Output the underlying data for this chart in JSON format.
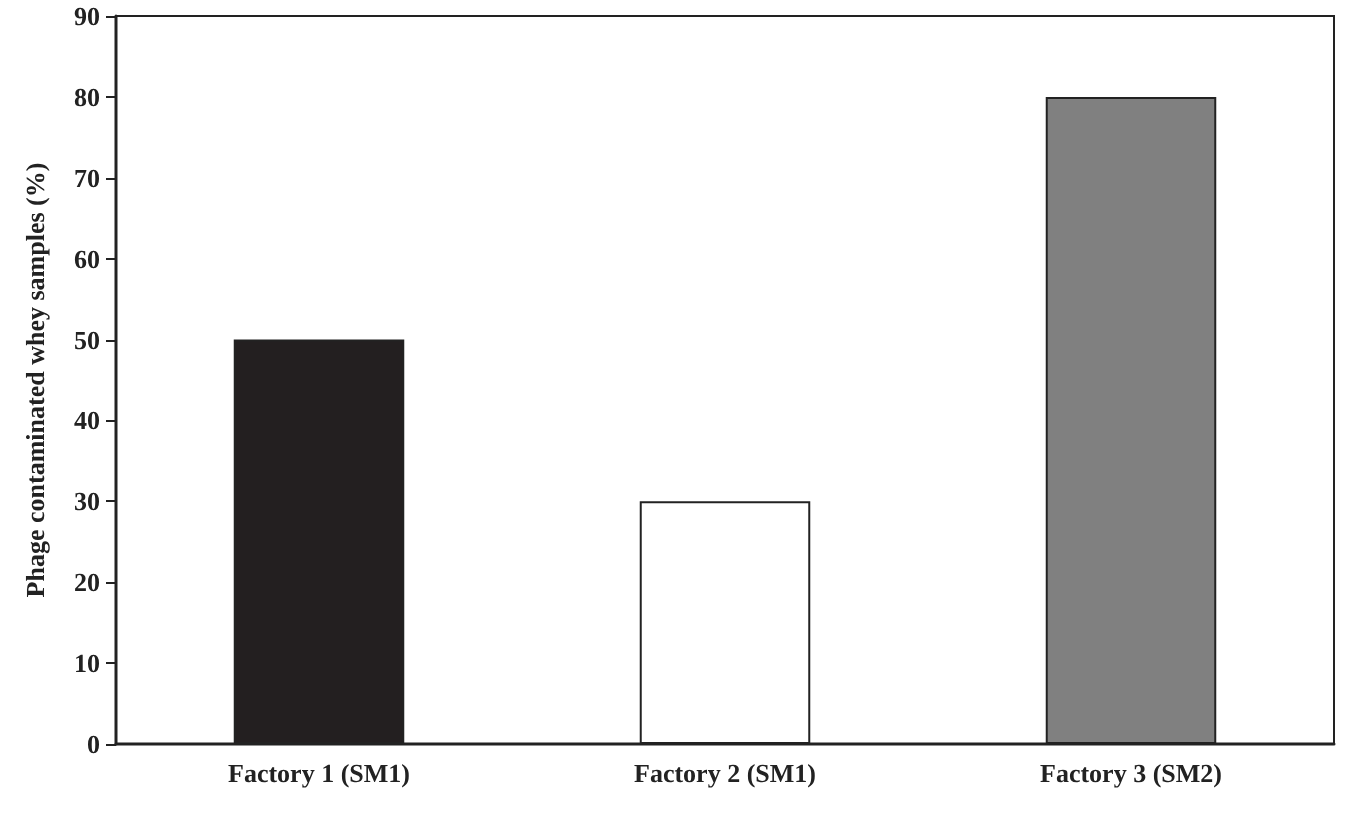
{
  "chart_data": {
    "type": "bar",
    "ylabel": "Phage contaminated whey samples (%)",
    "categories": [
      "Factory 1 (SM1)",
      "Factory 2 (SM1)",
      "Factory 3 (SM2)"
    ],
    "values": [
      50,
      30,
      80
    ],
    "colors": [
      "#231f20",
      "#ffffff",
      "#808080"
    ],
    "ylim": [
      0,
      90
    ],
    "yticks": [
      0,
      10,
      20,
      30,
      40,
      50,
      60,
      70,
      80,
      90
    ],
    "grid": false
  }
}
